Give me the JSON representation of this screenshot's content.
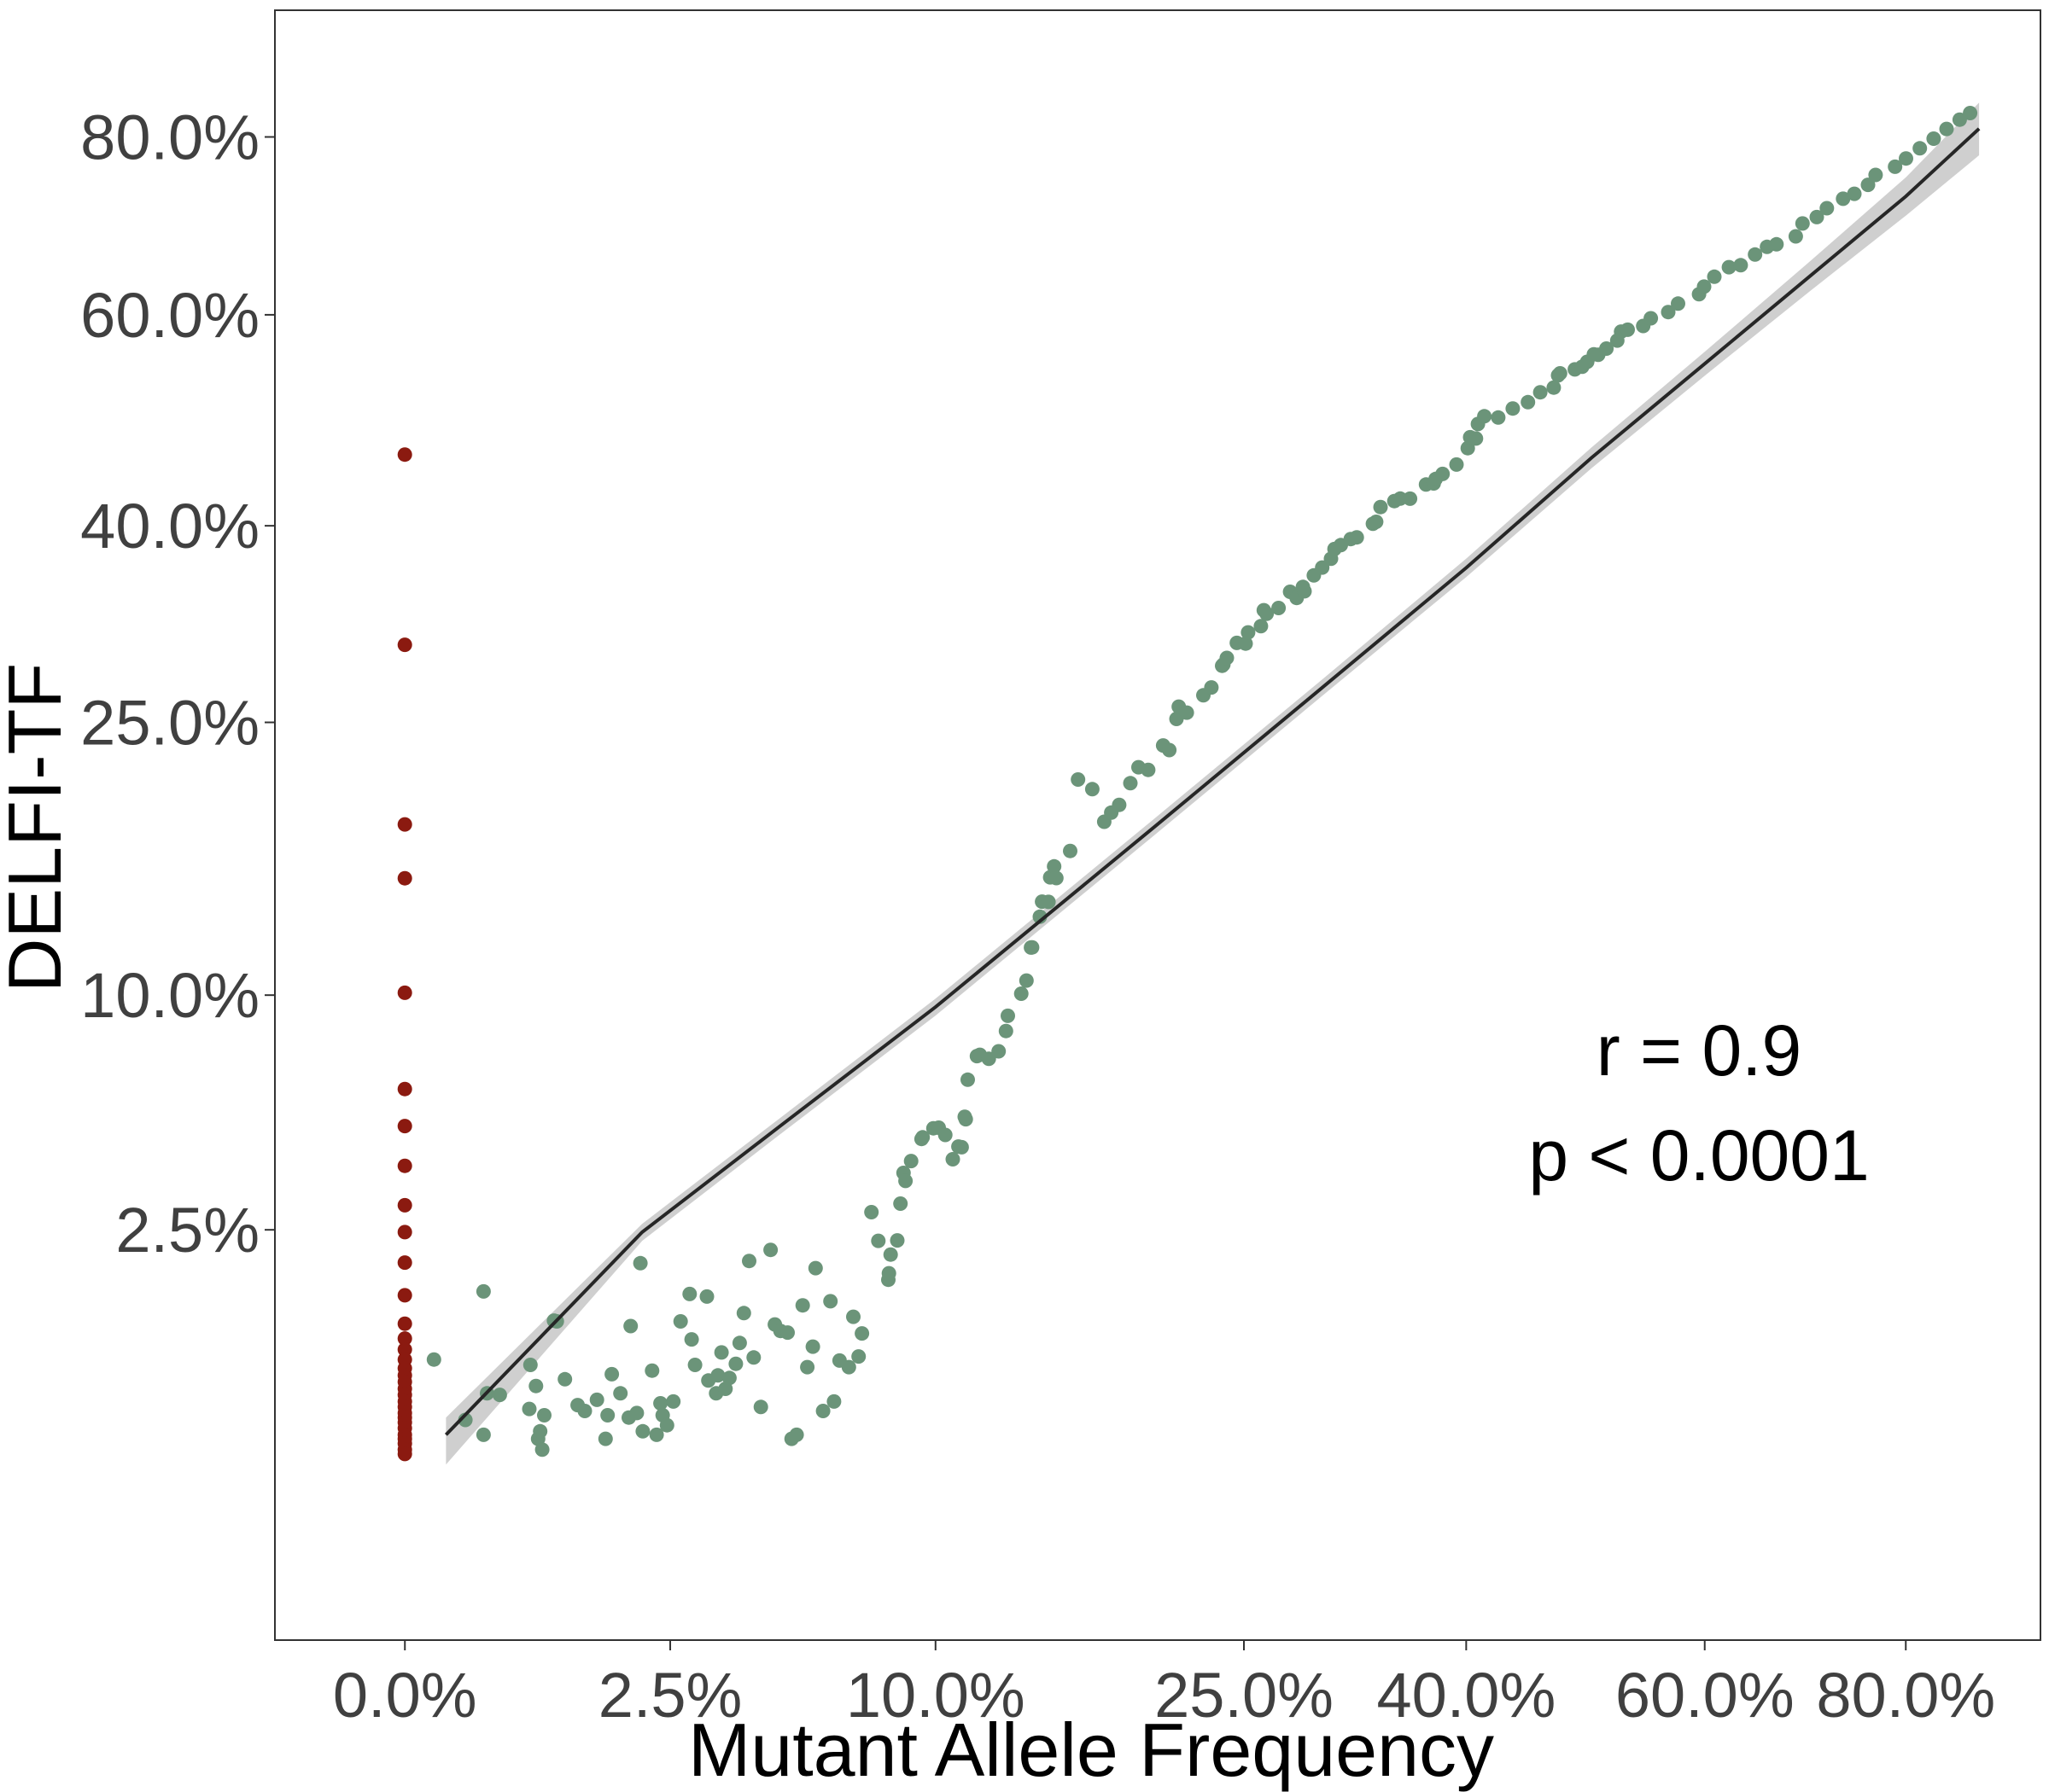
{
  "chart_data": {
    "type": "scatter",
    "xlabel": "Mutant Allele Frequency",
    "ylabel": "DELFI-TF",
    "scale": "sqrt",
    "x_ticks": [
      "0.0%",
      "2.5%",
      "10.0%",
      "25.0%",
      "40.0%",
      "60.0%",
      "80.0%"
    ],
    "x_tick_values": [
      0.0,
      0.025,
      0.1,
      0.25,
      0.4,
      0.6,
      0.8
    ],
    "y_ticks": [
      "2.5%",
      "10.0%",
      "25.0%",
      "40.0%",
      "60.0%",
      "80.0%"
    ],
    "y_tick_values": [
      0.025,
      0.1,
      0.25,
      0.4,
      0.6,
      0.8
    ],
    "xlim": [
      -0.006,
      0.95
    ],
    "ylim": [
      -0.014,
      0.96
    ],
    "grid": false,
    "annotations": [
      "r = 0.9",
      "p < 0.0001"
    ],
    "colors": {
      "detected": "#6b9479",
      "undetected": "#8b1a10",
      "fit_line": "#262626",
      "confidence_band": "#cfcfcf"
    },
    "fit": {
      "x": [
        0.0006,
        0.02,
        0.05,
        0.1,
        0.2,
        0.3,
        0.4,
        0.5,
        0.6,
        0.7,
        0.8,
        0.88
      ],
      "y": [
        0.0004,
        0.0245,
        0.052,
        0.095,
        0.185,
        0.275,
        0.365,
        0.46,
        0.55,
        0.64,
        0.73,
        0.81
      ],
      "ci_half_width": [
        0.0006,
        0.0018,
        0.0025,
        0.0035,
        0.0048,
        0.0058,
        0.0075,
        0.0095,
        0.012,
        0.016,
        0.022,
        0.032
      ]
    },
    "series": [
      {
        "name": "",
        "color": "#6b9479",
        "points": [
          [
            0.0003,
            0.005
          ],
          [
            0.0013,
            0.0009
          ],
          [
            0.0022,
            0.0004
          ],
          [
            0.0022,
            0.0136
          ],
          [
            0.0024,
            0.0023
          ],
          [
            0.0032,
            0.0022
          ],
          [
            0.0055,
            0.0014
          ],
          [
            0.0056,
            0.0045
          ],
          [
            0.0061,
            0.0028
          ],
          [
            0.0063,
            0.0003
          ],
          [
            0.0065,
            0.0005
          ],
          [
            0.0067,
            0.0001
          ],
          [
            0.0069,
            0.0011
          ],
          [
            0.0079,
            0.0094
          ],
          [
            0.0082,
            0.0093
          ],
          [
            0.0091,
            0.0033
          ],
          [
            0.0106,
            0.0016
          ],
          [
            0.0115,
            0.0013
          ],
          [
            0.0131,
            0.0019
          ],
          [
            0.0143,
            0.0003
          ],
          [
            0.0146,
            0.0011
          ],
          [
            0.0152,
            0.0037
          ],
          [
            0.0165,
            0.0023
          ],
          [
            0.0178,
            0.001
          ],
          [
            0.0181,
            0.0087
          ],
          [
            0.0191,
            0.0012
          ],
          [
            0.0197,
            0.0184
          ],
          [
            0.0201,
            0.0005
          ],
          [
            0.0217,
            0.004
          ],
          [
            0.0225,
            0.0004
          ],
          [
            0.0232,
            0.0017
          ],
          [
            0.0236,
            0.0011
          ],
          [
            0.0244,
            0.0007
          ],
          [
            0.0256,
            0.0018
          ],
          [
            0.027,
            0.0093
          ],
          [
            0.0288,
            0.0132
          ],
          [
            0.0292,
            0.0071
          ],
          [
            0.0299,
            0.0045
          ],
          [
            0.0324,
            0.0128
          ],
          [
            0.0327,
            0.0032
          ],
          [
            0.0344,
            0.0023
          ],
          [
            0.0348,
            0.0036
          ],
          [
            0.0356,
            0.0057
          ],
          [
            0.0365,
            0.0026
          ],
          [
            0.0374,
            0.0034
          ],
          [
            0.0389,
            0.0046
          ],
          [
            0.0398,
            0.0067
          ],
          [
            0.0408,
            0.0104
          ],
          [
            0.0421,
            0.0188
          ],
          [
            0.0432,
            0.0052
          ],
          [
            0.045,
            0.0015
          ],
          [
            0.0475,
            0.0209
          ],
          [
            0.0486,
            0.0089
          ],
          [
            0.0501,
            0.0081
          ],
          [
            0.052,
            0.0079
          ],
          [
            0.0531,
            0.0003
          ],
          [
            0.0545,
            0.0004
          ],
          [
            0.0562,
            0.0115
          ],
          [
            0.0575,
            0.0043
          ],
          [
            0.0591,
            0.0063
          ],
          [
            0.0599,
            0.0175
          ],
          [
            0.0621,
            0.0013
          ],
          [
            0.0643,
            0.0121
          ],
          [
            0.0654,
            0.0018
          ],
          [
            0.0671,
            0.0049
          ],
          [
            0.07,
            0.0043
          ],
          [
            0.0714,
            0.0099
          ],
          [
            0.0731,
            0.0053
          ],
          [
            0.0742,
            0.0078
          ],
          [
            0.0773,
            0.0289
          ],
          [
            0.0796,
            0.0227
          ],
          [
            0.083,
            0.0155
          ],
          [
            0.0832,
            0.0166
          ],
          [
            0.0838,
            0.02
          ],
          [
            0.0861,
            0.0228
          ],
          [
            0.0872,
            0.0309
          ],
          [
            0.0883,
            0.0386
          ],
          [
            0.089,
            0.0365
          ],
          [
            0.091,
            0.0418
          ],
          [
            0.0948,
            0.0481
          ],
          [
            0.0952,
            0.0486
          ],
          [
            0.0992,
            0.0513
          ],
          [
            0.1012,
            0.0515
          ],
          [
            0.1037,
            0.0493
          ],
          [
            0.1066,
            0.0423
          ],
          [
            0.1088,
            0.0459
          ],
          [
            0.1101,
            0.0457
          ],
          [
            0.1113,
            0.0549
          ],
          [
            0.1117,
            0.0541
          ],
          [
            0.1125,
            0.0672
          ],
          [
            0.1162,
            0.0757
          ],
          [
            0.1174,
            0.0762
          ],
          [
            0.1211,
            0.0747
          ],
          [
            0.1252,
            0.0775
          ],
          [
            0.1283,
            0.0853
          ],
          [
            0.1291,
            0.0914
          ],
          [
            0.1349,
            0.1006
          ],
          [
            0.1372,
            0.1063
          ],
          [
            0.1392,
            0.1213
          ],
          [
            0.1397,
            0.1214
          ],
          [
            0.1432,
            0.1362
          ],
          [
            0.1442,
            0.1438
          ],
          [
            0.1471,
            0.1437
          ],
          [
            0.1479,
            0.1565
          ],
          [
            0.1497,
            0.1624
          ],
          [
            0.1507,
            0.1561
          ],
          [
            0.1572,
            0.1709
          ],
          [
            0.1609,
            0.213
          ],
          [
            0.1678,
            0.207
          ],
          [
            0.1737,
            0.1875
          ],
          [
            0.1772,
            0.1929
          ],
          [
            0.1812,
            0.1975
          ],
          [
            0.1869,
            0.2107
          ],
          [
            0.1911,
            0.2207
          ],
          [
            0.1962,
            0.219
          ],
          [
            0.2042,
            0.2347
          ],
          [
            0.2075,
            0.2317
          ],
          [
            0.2114,
            0.2523
          ],
          [
            0.2127,
            0.2607
          ],
          [
            0.2171,
            0.2566
          ],
          [
            0.2264,
            0.2686
          ],
          [
            0.231,
            0.2741
          ],
          [
            0.2372,
            0.2896
          ],
          [
            0.2379,
            0.2905
          ],
          [
            0.2399,
            0.2953
          ],
          [
            0.2458,
            0.3064
          ],
          [
            0.251,
            0.3059
          ],
          [
            0.2525,
            0.3143
          ],
          [
            0.2602,
            0.319
          ],
          [
            0.262,
            0.3313
          ],
          [
            0.2637,
            0.3285
          ],
          [
            0.2711,
            0.333
          ],
          [
            0.2783,
            0.3457
          ],
          [
            0.2824,
            0.3409
          ],
          [
            0.2864,
            0.3496
          ],
          [
            0.2874,
            0.3461
          ],
          [
            0.2934,
            0.3588
          ],
          [
            0.2988,
            0.3652
          ],
          [
            0.3046,
            0.3724
          ],
          [
            0.3069,
            0.3804
          ],
          [
            0.3111,
            0.3837
          ],
          [
            0.3177,
            0.3888
          ],
          [
            0.3218,
            0.3902
          ],
          [
            0.3328,
            0.4017
          ],
          [
            0.335,
            0.4034
          ],
          [
            0.338,
            0.4161
          ],
          [
            0.3477,
            0.4213
          ],
          [
            0.3518,
            0.4235
          ],
          [
            0.3588,
            0.4234
          ],
          [
            0.3703,
            0.4359
          ],
          [
            0.3759,
            0.4369
          ],
          [
            0.3773,
            0.4409
          ],
          [
            0.3824,
            0.4454
          ],
          [
            0.3927,
            0.4539
          ],
          [
            0.4012,
            0.4689
          ],
          [
            0.403,
            0.479
          ],
          [
            0.4074,
            0.4778
          ],
          [
            0.4089,
            0.4914
          ],
          [
            0.4138,
            0.4988
          ],
          [
            0.4245,
            0.4976
          ],
          [
            0.4359,
            0.5062
          ],
          [
            0.4479,
            0.5123
          ],
          [
            0.4578,
            0.5219
          ],
          [
            0.4687,
            0.5264
          ],
          [
            0.4723,
            0.5384
          ],
          [
            0.4739,
            0.5405
          ],
          [
            0.4861,
            0.5444
          ],
          [
            0.4922,
            0.547
          ],
          [
            0.4964,
            0.5519
          ],
          [
            0.502,
            0.5595
          ],
          [
            0.5057,
            0.559
          ],
          [
            0.5127,
            0.5653
          ],
          [
            0.522,
            0.5734
          ],
          [
            0.5253,
            0.5826
          ],
          [
            0.531,
            0.5845
          ],
          [
            0.5446,
            0.5884
          ],
          [
            0.5513,
            0.5964
          ],
          [
            0.5668,
            0.6029
          ],
          [
            0.5756,
            0.6117
          ],
          [
            0.5948,
            0.6217
          ],
          [
            0.5994,
            0.6298
          ],
          [
            0.6089,
            0.6404
          ],
          [
            0.6226,
            0.6507
          ],
          [
            0.6337,
            0.6529
          ],
          [
            0.6474,
            0.6645
          ],
          [
            0.6589,
            0.673
          ],
          [
            0.6681,
            0.6758
          ],
          [
            0.687,
            0.6847
          ],
          [
            0.6937,
            0.6991
          ],
          [
            0.7079,
            0.7063
          ],
          [
            0.7181,
            0.7164
          ],
          [
            0.7345,
            0.7273
          ],
          [
            0.7461,
            0.733
          ],
          [
            0.7602,
            0.7433
          ],
          [
            0.7681,
            0.7549
          ],
          [
            0.7886,
            0.7645
          ],
          [
            0.8002,
            0.7743
          ],
          [
            0.815,
            0.7864
          ],
          [
            0.83,
            0.7979
          ],
          [
            0.844,
            0.8097
          ],
          [
            0.8585,
            0.821
          ],
          [
            0.87,
            0.829
          ]
        ]
      },
      {
        "name": "",
        "color": "#8b1a10",
        "points": [
          [
            0,
            0.463
          ],
          [
            0,
            0.305
          ],
          [
            0,
            0.186
          ],
          [
            0,
            0.156
          ],
          [
            0,
            0.101
          ],
          [
            0,
            0.064
          ],
          [
            0,
            0.052
          ],
          [
            0,
            0.0405
          ],
          [
            0,
            0.0305
          ],
          [
            0,
            0.0245
          ],
          [
            0,
            0.0185
          ],
          [
            0,
            0.013
          ],
          [
            0,
            0.009
          ],
          [
            0,
            0.0072
          ],
          [
            0,
            0.006
          ],
          [
            0,
            0.005
          ],
          [
            0,
            0.0042
          ],
          [
            0,
            0.0036
          ],
          [
            0,
            0.0031
          ],
          [
            0,
            0.0026
          ],
          [
            0,
            0.0022
          ],
          [
            0,
            0.0018
          ],
          [
            0,
            0.0015
          ],
          [
            0,
            0.0012
          ],
          [
            0,
            0.001
          ],
          [
            0,
            0.0008
          ],
          [
            0,
            0.0006
          ],
          [
            0,
            0.0004
          ],
          [
            0,
            0.0003
          ],
          [
            0,
            0.0002
          ],
          [
            0,
            0.0001
          ],
          [
            0,
            5e-05
          ]
        ]
      }
    ]
  }
}
